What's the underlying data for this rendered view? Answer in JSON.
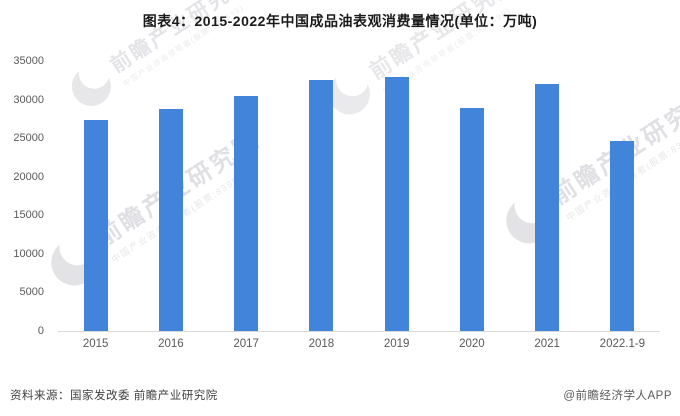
{
  "header": {
    "title": "图表4：2015-2022年中国成品油表观消费量情况(单位：万吨)"
  },
  "watermark": {
    "brand": "前瞻产业研究院",
    "tagline": "中国产业咨询领导者(股票:839599)"
  },
  "footer": {
    "source": "资料来源：国家发改委 前瞻产业研究院",
    "credit": "@前瞻经济学人APP"
  },
  "chart_data": {
    "type": "bar",
    "title": "2015-2022年中国成品油表观消费量情况",
    "unit": "万吨",
    "categories": [
      "2015",
      "2016",
      "2017",
      "2018",
      "2019",
      "2020",
      "2021",
      "2022.1-9"
    ],
    "values": [
      27400,
      28800,
      30500,
      32600,
      32900,
      28900,
      32000,
      24600
    ],
    "xlabel": "",
    "ylabel": "",
    "ylim": [
      0,
      35000
    ],
    "ytick_step": 5000,
    "yticks": [
      0,
      5000,
      10000,
      15000,
      20000,
      25000,
      30000,
      35000
    ],
    "grid": false,
    "legend": false,
    "bar_color": "#4384DB",
    "axis_line_color": "#D9D9D9",
    "tick_label_color": "#595959"
  }
}
